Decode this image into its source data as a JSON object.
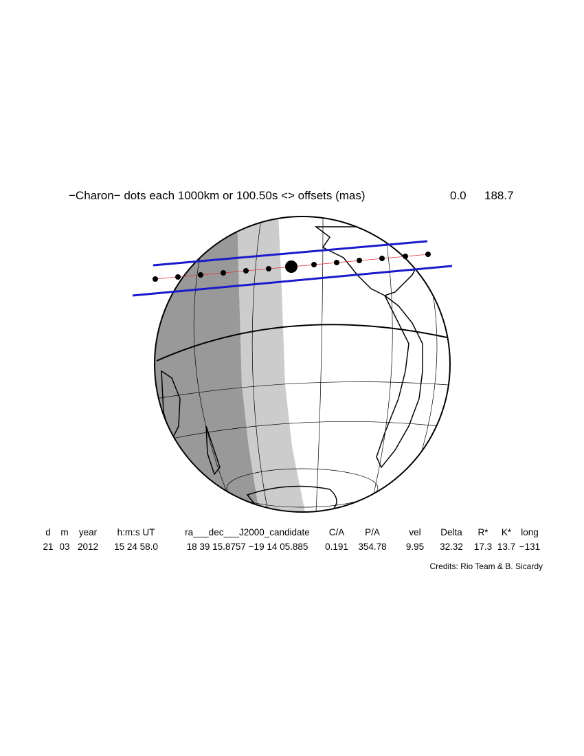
{
  "header": {
    "title": "−Charon− dots each 1000km or 100.50s <> offsets (mas)",
    "offset_x": "0.0",
    "offset_y": "188.7"
  },
  "table": {
    "columns": [
      "d",
      "m",
      "year",
      "h:m:s UT",
      "ra___dec___J2000_candidate",
      "C/A",
      "P/A",
      "vel",
      "Delta",
      "R*",
      "K*",
      "long"
    ],
    "rows": [
      [
        "21",
        "03",
        "2012",
        "15 24 58.0",
        "18 39 15.8757 −19 14 05.885",
        "0.191",
        "354.78",
        "9.95",
        "32.32",
        "17.3",
        "13.7",
        "−131"
      ]
    ]
  },
  "credits": "Credits: Rio Team & B. Sicardy"
}
